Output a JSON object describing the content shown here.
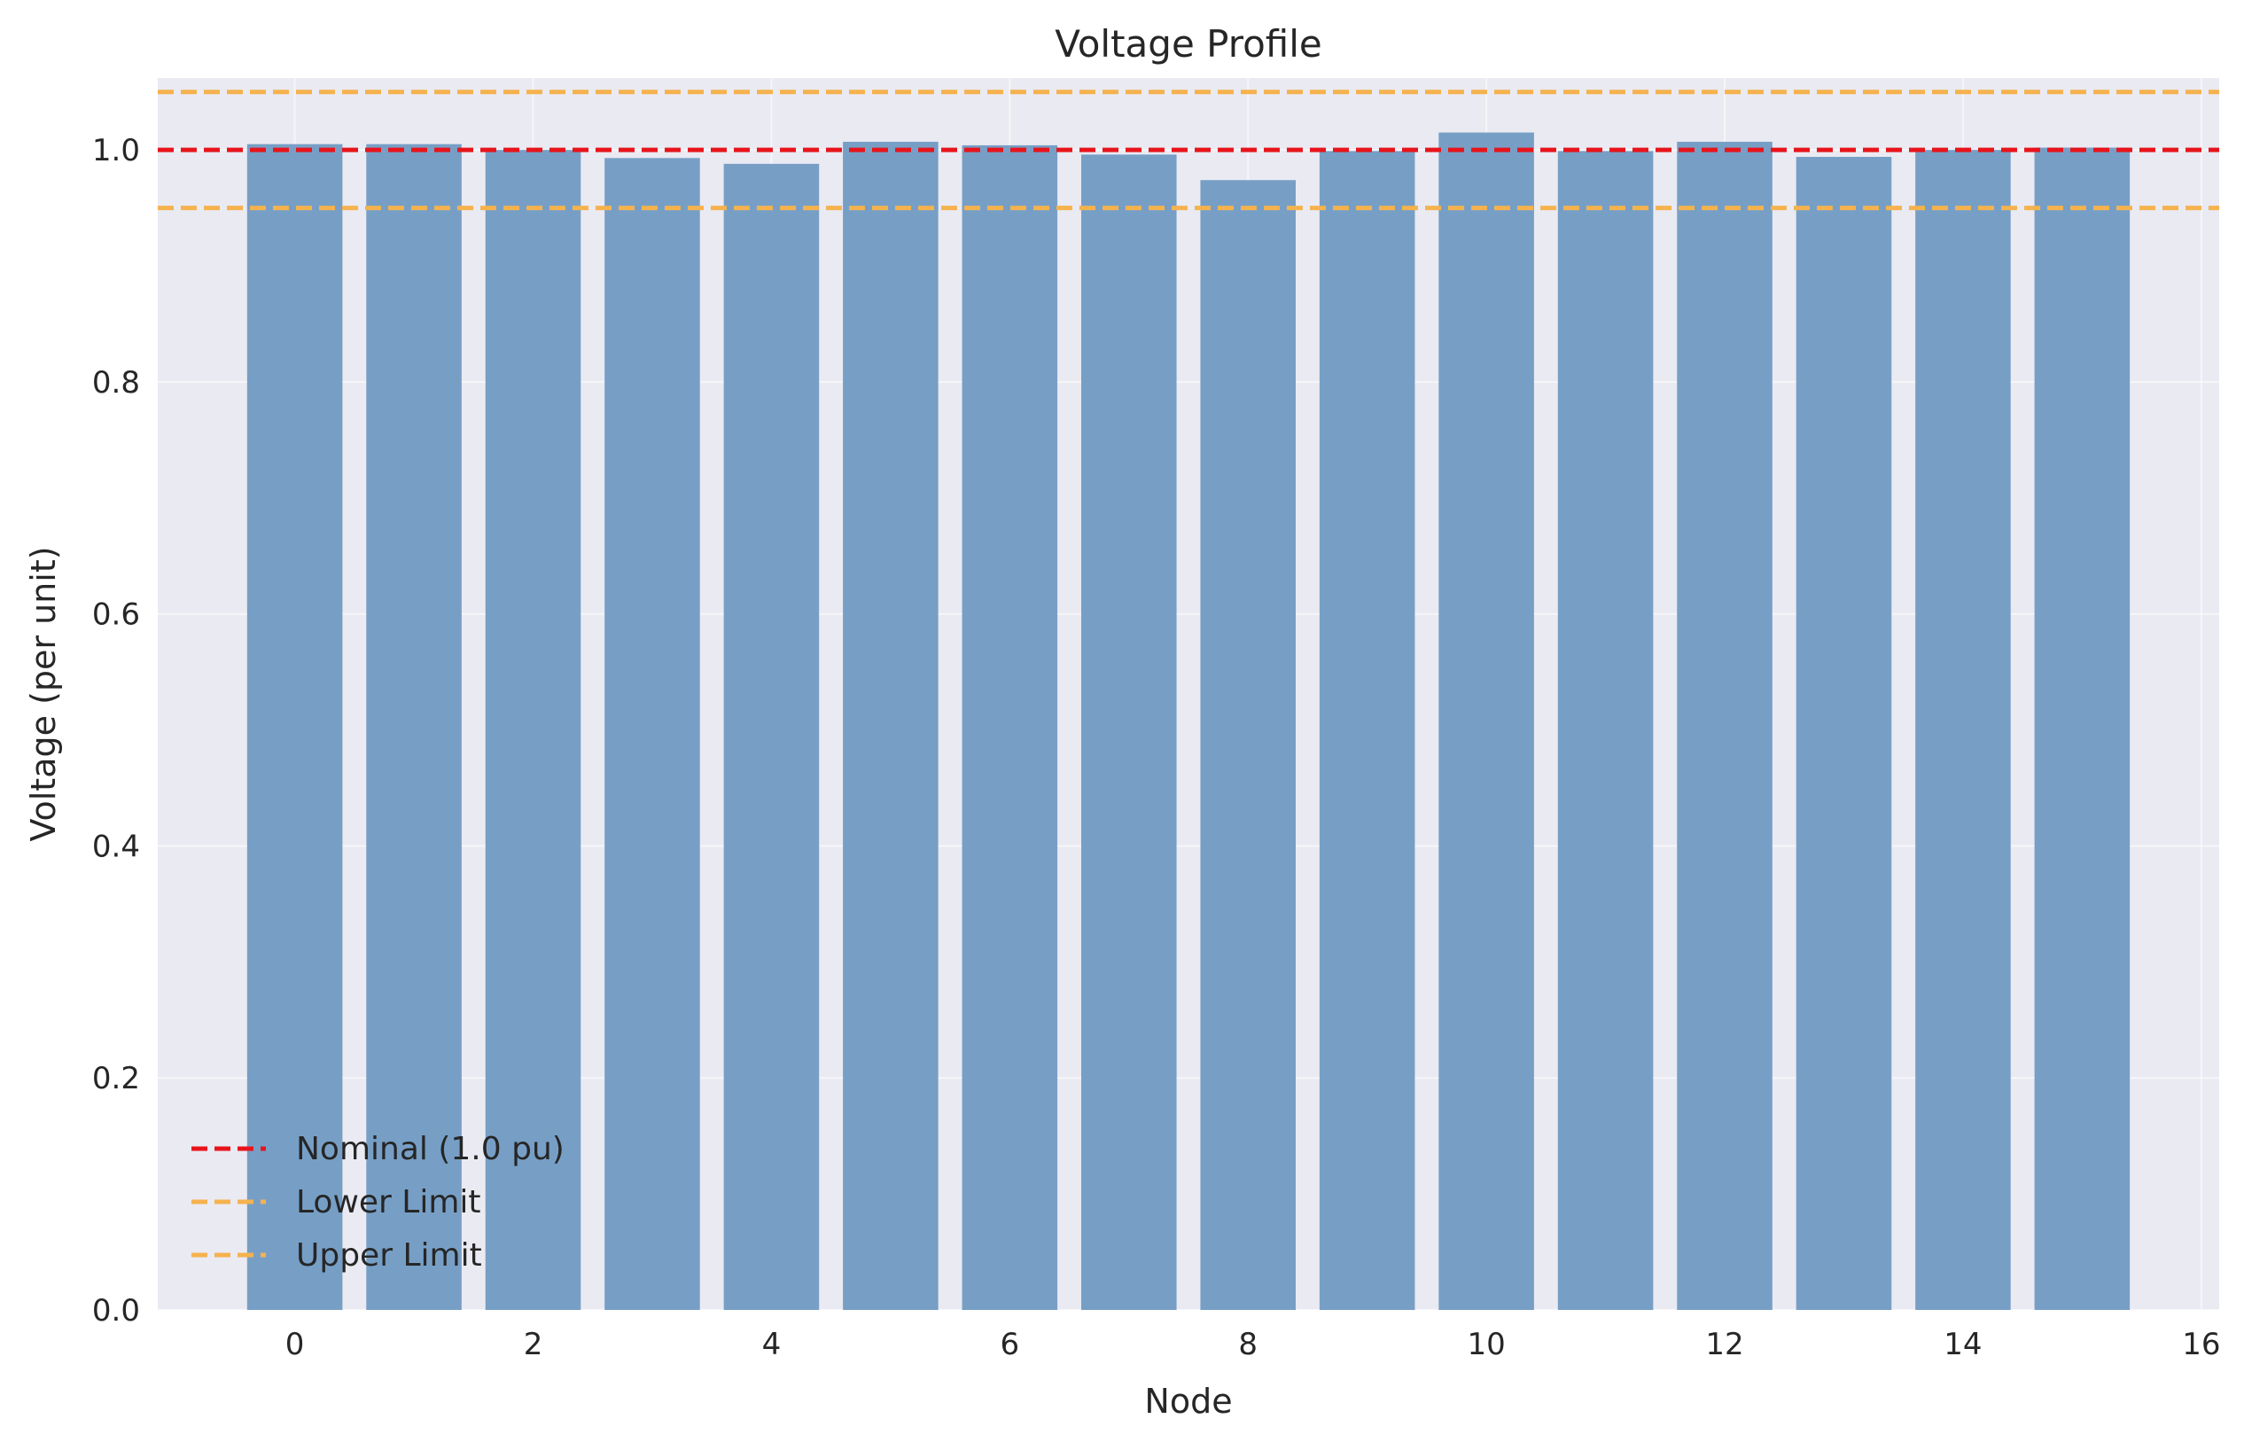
{
  "chart_data": {
    "type": "bar",
    "title": "Voltage Profile",
    "xlabel": "Node",
    "ylabel": "Voltage (per unit)",
    "x": [
      0,
      1,
      2,
      3,
      4,
      5,
      6,
      7,
      8,
      9,
      10,
      11,
      12,
      13,
      14,
      15
    ],
    "values": [
      1.005,
      1.005,
      1.0,
      0.993,
      0.988,
      1.007,
      1.004,
      0.996,
      0.974,
      0.999,
      1.015,
      0.999,
      1.007,
      0.994,
      1.0,
      1.002
    ],
    "xlim": [
      -1.15,
      16.15
    ],
    "ylim": [
      0,
      1.062
    ],
    "xticks": [
      "0",
      "2",
      "4",
      "6",
      "8",
      "10",
      "12",
      "14",
      "16"
    ],
    "yticks": [
      "0.0",
      "0.2",
      "0.4",
      "0.6",
      "0.8",
      "1.0"
    ],
    "reference_lines": [
      {
        "name": "Nominal (1.0 pu)",
        "y": 1.0,
        "color": "#e8141b",
        "style": "dashed"
      },
      {
        "name": "Lower Limit",
        "y": 0.95,
        "color": "#f5b24e",
        "style": "dashed"
      },
      {
        "name": "Upper Limit",
        "y": 1.05,
        "color": "#f5b24e",
        "style": "dashed"
      }
    ],
    "bar_color": "#779fc6",
    "background_color": "#eaeaf2",
    "grid": true,
    "legend_position": "lower-left"
  }
}
